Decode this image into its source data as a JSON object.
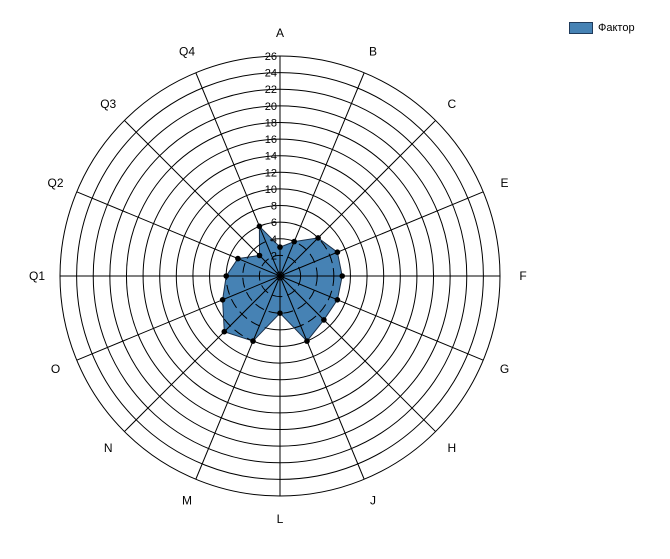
{
  "chart_data": {
    "type": "radar",
    "categories": [
      "A",
      "B",
      "C",
      "E",
      "F",
      "G",
      "H",
      "J",
      "L",
      "M",
      "N",
      "O",
      "Q1",
      "Q2",
      "Q3",
      "Q4"
    ],
    "series": [
      {
        "name": "Фактор",
        "values": [
          3,
          4,
          6,
          7,
          7,
          7,
          7,
          8,
          4,
          8,
          9,
          7,
          6,
          5,
          3,
          6
        ],
        "color": "#4682b4"
      }
    ],
    "rlim": [
      0,
      26
    ],
    "r_ticks": [
      0,
      2,
      4,
      6,
      8,
      10,
      12,
      14,
      16,
      18,
      20,
      22,
      24,
      26
    ],
    "legend_position": "top-right",
    "grid": true
  }
}
